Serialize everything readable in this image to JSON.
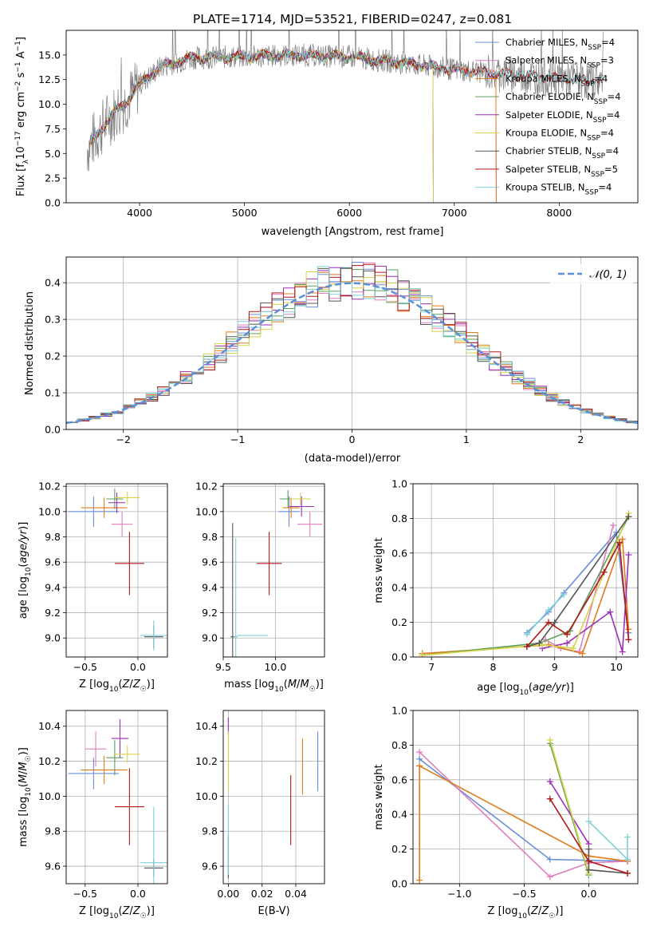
{
  "figure": {
    "title": "PLATE=1714, MJD=53521, FIBERID=0247, z=0.081"
  },
  "colors": {
    "Chabrier MILES": "#6a8fd8",
    "Salpeter MILES": "#e07fc0",
    "Kroupa MILES": "#e07b1c",
    "Chabrier ELODIE": "#5aa05a",
    "Salpeter ELODIE": "#9b2fb8",
    "Kroupa ELODIE": "#d6d448",
    "Chabrier STELIB": "#555555",
    "Salpeter STELIB": "#b01818",
    "Kroupa STELIB": "#7fd0d8",
    "data": "#808080",
    "normal": "#5b8fd6"
  },
  "chart_data": [
    {
      "id": "spectrum",
      "type": "line",
      "xlabel": "wavelength [Angstrom, rest frame]",
      "ylabel": "Flux [f_λ10^-17 erg cm^-2 s^-1 A^-1]",
      "xlim": [
        3300,
        8750
      ],
      "ylim": [
        0,
        17.5
      ],
      "xticks": [
        "4000",
        "5000",
        "6000",
        "7000",
        "8000"
      ],
      "yticks": [
        "0.0",
        "2.5",
        "5.0",
        "7.5",
        "10.0",
        "12.5",
        "15.0"
      ],
      "grid": false,
      "legend": "right",
      "series": [
        {
          "name": "Chabrier MILES",
          "nssp": "4"
        },
        {
          "name": "Salpeter MILES",
          "nssp": "3"
        },
        {
          "name": "Kroupa MILES",
          "nssp": "4"
        },
        {
          "name": "Chabrier ELODIE",
          "nssp": "4"
        },
        {
          "name": "Salpeter ELODIE",
          "nssp": "4"
        },
        {
          "name": "Kroupa ELODIE",
          "nssp": "4"
        },
        {
          "name": "Chabrier STELIB",
          "nssp": "4"
        },
        {
          "name": "Salpeter STELIB",
          "nssp": "5"
        },
        {
          "name": "Kroupa STELIB",
          "nssp": "4"
        }
      ],
      "continuum": {
        "x": [
          3500,
          3700,
          3850,
          4000,
          4200,
          4500,
          4800,
          5000,
          5500,
          6000,
          6500,
          7000,
          7400,
          8000,
          8500
        ],
        "y": [
          5.5,
          8.5,
          10.0,
          12.0,
          13.8,
          14.7,
          14.8,
          14.8,
          15.0,
          14.8,
          14.2,
          13.5,
          13.2,
          12.6,
          12.3
        ]
      }
    },
    {
      "id": "residuals",
      "type": "histogram",
      "xlabel": "(data-model)/error",
      "ylabel": "Normed distribution",
      "xlim": [
        -2.5,
        2.5
      ],
      "ylim": [
        0,
        0.47
      ],
      "xticks": [
        "−2",
        "−1",
        "0",
        "1",
        "2"
      ],
      "yticks": [
        "0.0",
        "0.1",
        "0.2",
        "0.3",
        "0.4"
      ],
      "grid": true,
      "legend": "top-right",
      "legend_label": "𝒩(0, 1)",
      "bin_width": 0.1
    },
    {
      "id": "age-vs-Z",
      "type": "scatter",
      "xlabel": "Z [log10(Z/Z☉)]",
      "ylabel": "age [log10(age/yr)]",
      "xlim": [
        -0.68,
        0.28
      ],
      "ylim": [
        8.85,
        10.22
      ],
      "xticks": [
        "−0.5",
        "0.0"
      ],
      "yticks": [
        "9.0",
        "9.2",
        "9.4",
        "9.6",
        "9.8",
        "10.0",
        "10.2"
      ],
      "grid": true,
      "points": [
        {
          "series": "Chabrier MILES",
          "x": -0.42,
          "y": 10.0,
          "xerr": 0.24,
          "yerr": 0.12
        },
        {
          "series": "Salpeter MILES",
          "x": -0.15,
          "y": 9.9,
          "xerr": 0.1,
          "yerr": 0.1
        },
        {
          "series": "Kroupa MILES",
          "x": -0.32,
          "y": 10.03,
          "xerr": 0.22,
          "yerr": 0.08
        },
        {
          "series": "Chabrier ELODIE",
          "x": -0.22,
          "y": 10.1,
          "xerr": 0.08,
          "yerr": 0.08
        },
        {
          "series": "Salpeter ELODIE",
          "x": -0.2,
          "y": 10.07,
          "xerr": 0.08,
          "yerr": 0.08
        },
        {
          "series": "Kroupa ELODIE",
          "x": -0.1,
          "y": 10.11,
          "xerr": 0.12,
          "yerr": 0.05
        },
        {
          "series": "Chabrier STELIB",
          "x": 0.15,
          "y": 9.01,
          "xerr": 0.09,
          "yerr": 0.09
        },
        {
          "series": "Salpeter STELIB",
          "x": -0.08,
          "y": 9.59,
          "xerr": 0.14,
          "yerr": 0.25
        },
        {
          "series": "Kroupa STELIB",
          "x": 0.15,
          "y": 9.02,
          "xerr": 0.13,
          "yerr": 0.12
        }
      ]
    },
    {
      "id": "age-vs-mass",
      "type": "scatter",
      "xlabel": "mass [log10(M/M☉)]",
      "ylabel": "",
      "xlim": [
        9.5,
        10.47
      ],
      "ylim": [
        8.85,
        10.22
      ],
      "xticks": [
        "9.5",
        "10.0"
      ],
      "yticks": [
        "9.0",
        "9.2",
        "9.4",
        "9.6",
        "9.8",
        "10.0",
        "10.2"
      ],
      "grid": true,
      "points": [
        {
          "series": "Chabrier MILES",
          "x": 10.13,
          "y": 10.0,
          "xerr": 0.1,
          "yerr": 0.12
        },
        {
          "series": "Salpeter MILES",
          "x": 10.33,
          "y": 9.9,
          "xerr": 0.12,
          "yerr": 0.1
        },
        {
          "series": "Kroupa MILES",
          "x": 10.15,
          "y": 10.03,
          "xerr": 0.08,
          "yerr": 0.08
        },
        {
          "series": "Chabrier ELODIE",
          "x": 10.12,
          "y": 10.1,
          "xerr": 0.08,
          "yerr": 0.07
        },
        {
          "series": "Salpeter ELODIE",
          "x": 10.25,
          "y": 10.04,
          "xerr": 0.12,
          "yerr": 0.08
        },
        {
          "series": "Kroupa ELODIE",
          "x": 10.24,
          "y": 10.1,
          "xerr": 0.1,
          "yerr": 0.05
        },
        {
          "series": "Chabrier STELIB",
          "x": 9.59,
          "y": 9.01,
          "xerr": 0.02,
          "yerr": 0.9
        },
        {
          "series": "Salpeter STELIB",
          "x": 9.94,
          "y": 9.59,
          "xerr": 0.12,
          "yerr": 0.25
        },
        {
          "series": "Kroupa STELIB",
          "x": 9.62,
          "y": 9.01,
          "xerr": 0.02,
          "yerr": 0.78
        },
        {
          "series": "Kroupa STELIB",
          "x": 9.78,
          "y": 9.02,
          "xerr": 0.15,
          "yerr": 0.0
        }
      ]
    },
    {
      "id": "weight-vs-age",
      "type": "line",
      "xlabel": "age [log10(age/yr)]",
      "ylabel": "mass weight",
      "xlim": [
        6.7,
        10.35
      ],
      "ylim": [
        0,
        1.0
      ],
      "xticks": [
        "7",
        "8",
        "9",
        "10"
      ],
      "yticks": [
        "0.0",
        "0.2",
        "0.4",
        "0.6",
        "0.8",
        "1.0"
      ],
      "grid": true,
      "series": [
        {
          "series": "Chabrier MILES",
          "x": [
            8.55,
            8.9,
            9.15,
            10.0,
            10.2
          ],
          "y": [
            0.14,
            0.26,
            0.37,
            0.72,
            0.14
          ]
        },
        {
          "series": "Salpeter MILES",
          "x": [
            8.85,
            9.1,
            9.4,
            9.95
          ],
          "y": [
            0.1,
            0.05,
            0.03,
            0.76
          ]
        },
        {
          "series": "Kroupa MILES",
          "x": [
            6.85,
            8.9,
            9.45,
            10.1,
            10.2
          ],
          "y": [
            0.02,
            0.07,
            0.02,
            0.68,
            0.16
          ]
        },
        {
          "series": "Chabrier ELODIE",
          "x": [
            6.85,
            8.75,
            9.25,
            10.2
          ],
          "y": [
            0.01,
            0.08,
            0.15,
            0.81
          ]
        },
        {
          "series": "Salpeter ELODIE",
          "x": [
            8.8,
            9.2,
            9.9,
            10.1,
            10.2
          ],
          "y": [
            0.05,
            0.08,
            0.26,
            0.03,
            0.59
          ]
        },
        {
          "series": "Kroupa ELODIE",
          "x": [
            6.85,
            8.8,
            9.3,
            10.2
          ],
          "y": [
            0.01,
            0.07,
            0.05,
            0.83
          ]
        },
        {
          "series": "Chabrier STELIB",
          "x": [
            8.55,
            8.75,
            9.0,
            10.2
          ],
          "y": [
            0.06,
            0.08,
            0.2,
            0.81
          ]
        },
        {
          "series": "Salpeter STELIB",
          "x": [
            8.55,
            8.9,
            9.2,
            9.8,
            10.05,
            10.2
          ],
          "y": [
            0.06,
            0.2,
            0.13,
            0.49,
            0.66,
            0.1
          ]
        },
        {
          "series": "Kroupa STELIB",
          "x": [
            8.55,
            8.9,
            9.15
          ],
          "y": [
            0.13,
            0.27,
            0.36
          ]
        }
      ]
    },
    {
      "id": "mass-vs-Z",
      "type": "scatter",
      "xlabel": "Z [log10(Z/Z☉)]",
      "ylabel": "mass [log10(M/M☉)]",
      "xlim": [
        -0.68,
        0.28
      ],
      "ylim": [
        9.5,
        10.49
      ],
      "xticks": [
        "−0.5",
        "0.0"
      ],
      "yticks": [
        "9.6",
        "9.8",
        "10.0",
        "10.2",
        "10.4"
      ],
      "grid": true,
      "points": [
        {
          "series": "Chabrier MILES",
          "x": -0.42,
          "y": 10.13,
          "xerr": 0.24,
          "yerr": 0.09
        },
        {
          "series": "Salpeter MILES",
          "x": -0.4,
          "y": 10.27,
          "xerr": 0.1,
          "yerr": 0.1
        },
        {
          "series": "Kroupa MILES",
          "x": -0.32,
          "y": 10.15,
          "xerr": 0.22,
          "yerr": 0.08
        },
        {
          "series": "Chabrier ELODIE",
          "x": -0.22,
          "y": 10.22,
          "xerr": 0.08,
          "yerr": 0.1
        },
        {
          "series": "Salpeter ELODIE",
          "x": -0.17,
          "y": 10.33,
          "xerr": 0.08,
          "yerr": 0.11
        },
        {
          "series": "Kroupa ELODIE",
          "x": -0.1,
          "y": 10.24,
          "xerr": 0.12,
          "yerr": 0.05
        },
        {
          "series": "Chabrier STELIB",
          "x": 0.15,
          "y": 9.59,
          "xerr": 0.09,
          "yerr": 0.05
        },
        {
          "series": "Salpeter STELIB",
          "x": -0.08,
          "y": 9.94,
          "xerr": 0.14,
          "yerr": 0.22
        },
        {
          "series": "Kroupa STELIB",
          "x": 0.15,
          "y": 9.62,
          "xerr": 0.13,
          "yerr": 0.32
        }
      ]
    },
    {
      "id": "mass-vs-EBV",
      "type": "scatter",
      "xlabel": "E(B-V)",
      "ylabel": "",
      "xlim": [
        -0.003,
        0.057
      ],
      "ylim": [
        9.5,
        10.49
      ],
      "xticks": [
        "0.00",
        "0.02",
        "0.04"
      ],
      "yticks": [
        "9.6",
        "9.8",
        "10.0",
        "10.2",
        "10.4"
      ],
      "grid": true,
      "points": [
        {
          "series": "Chabrier MILES",
          "x": 0.053,
          "y": 10.2,
          "xerr": 0.0,
          "yerr": 0.17
        },
        {
          "series": "Kroupa MILES",
          "x": 0.044,
          "y": 10.17,
          "xerr": 0.0,
          "yerr": 0.16
        },
        {
          "series": "Salpeter STELIB",
          "x": 0.037,
          "y": 9.92,
          "xerr": 0.0,
          "yerr": 0.2
        },
        {
          "series": "Salpeter ELODIE",
          "x": 0.0,
          "y": 10.4,
          "xerr": 0.0,
          "yerr": 0.05
        },
        {
          "series": "Kroupa ELODIE",
          "x": 0.0,
          "y": 10.2,
          "xerr": 0.0,
          "yerr": 0.17
        },
        {
          "series": "Chabrier STELIB",
          "x": 0.0,
          "y": 9.65,
          "xerr": 0.0,
          "yerr": 0.12
        },
        {
          "series": "Kroupa STELIB",
          "x": 0.0,
          "y": 9.75,
          "xerr": 0.0,
          "yerr": 0.2
        }
      ]
    },
    {
      "id": "weight-vs-Z",
      "type": "line",
      "xlabel": "Z [log10(Z/Z☉)]",
      "ylabel": "mass weight",
      "xlim": [
        -1.36,
        0.38
      ],
      "ylim": [
        0,
        1.0
      ],
      "xticks": [
        "−1.0",
        "−0.5",
        "0.0"
      ],
      "yticks": [
        "0.0",
        "0.2",
        "0.4",
        "0.6",
        "0.8",
        "1.0"
      ],
      "grid": true,
      "series": [
        {
          "series": "Chabrier MILES",
          "x": [
            -1.31,
            -0.3,
            0.3
          ],
          "y": [
            0.72,
            0.14,
            0.13
          ]
        },
        {
          "series": "Salpeter MILES",
          "x": [
            -1.31,
            -0.3,
            0.0,
            0.3
          ],
          "y": [
            0.76,
            0.04,
            0.12,
            0.13
          ]
        },
        {
          "series": "Kroupa MILES",
          "x": [
            -1.31,
            -1.31,
            0.0,
            0.3
          ],
          "y": [
            0.02,
            0.68,
            0.16,
            0.13
          ]
        },
        {
          "series": "Chabrier ELODIE",
          "x": [
            -0.3,
            0.0
          ],
          "y": [
            0.81,
            0.05
          ]
        },
        {
          "series": "Salpeter ELODIE",
          "x": [
            -0.3,
            0.0
          ],
          "y": [
            0.59,
            0.23
          ]
        },
        {
          "series": "Kroupa ELODIE",
          "x": [
            -0.3,
            0.0
          ],
          "y": [
            0.83,
            0.06
          ]
        },
        {
          "series": "Chabrier STELIB",
          "x": [
            0.0,
            0.0,
            0.3
          ],
          "y": [
            0.2,
            0.08,
            0.06
          ]
        },
        {
          "series": "Salpeter STELIB",
          "x": [
            -0.3,
            0.0,
            0.3
          ],
          "y": [
            0.49,
            0.13,
            0.06
          ]
        },
        {
          "series": "Kroupa STELIB",
          "x": [
            0.0,
            0.3,
            0.3
          ],
          "y": [
            0.36,
            0.14,
            0.27
          ]
        }
      ]
    }
  ]
}
